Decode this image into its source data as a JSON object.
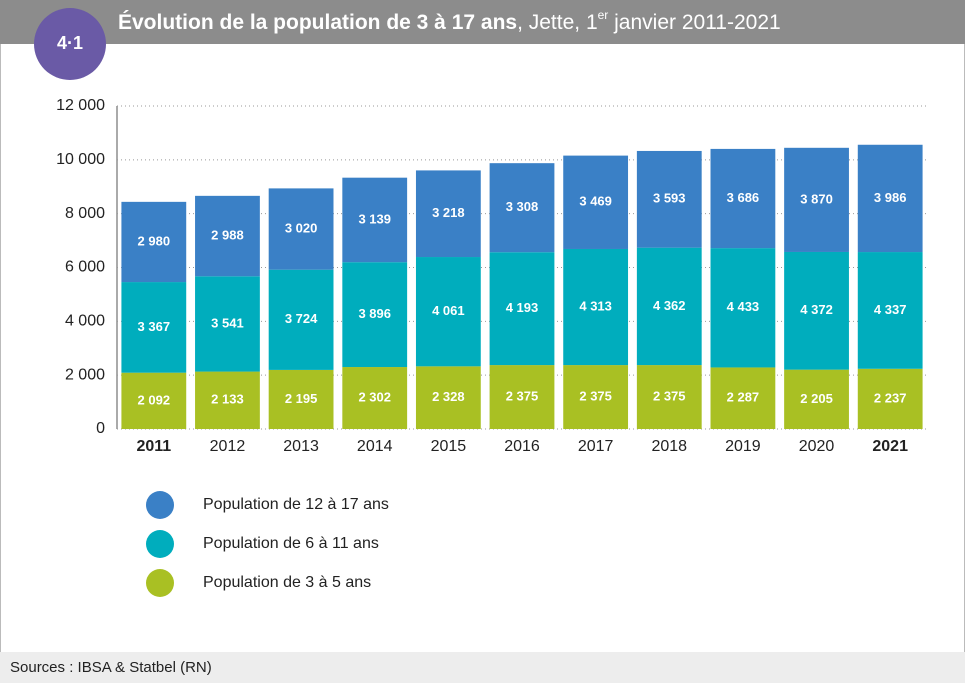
{
  "badge": "4·1",
  "chart_data": {
    "type": "stacked_bar",
    "title": {
      "bold": "Évolution de la population de 3 à 17 ans",
      "rest": ", Jette, 1",
      "sup": "er",
      "end": " janvier 2011-2021"
    },
    "categories": [
      "2011",
      "2012",
      "2013",
      "2014",
      "2015",
      "2016",
      "2017",
      "2018",
      "2019",
      "2020",
      "2021"
    ],
    "bold_categories": [
      0,
      10
    ],
    "series": [
      {
        "name": "Population de 3 à 5 ans",
        "color": "#a9c023",
        "values": [
          2092,
          2133,
          2195,
          2302,
          2328,
          2375,
          2375,
          2375,
          2287,
          2205,
          2237
        ],
        "value_labels": [
          "2 092",
          "2 133",
          "2 195",
          "2 302",
          "2 328",
          "2 375",
          "2 375",
          "2 375",
          "2 287",
          "2 205",
          "2 237"
        ]
      },
      {
        "name": "Population de 6 à 11 ans",
        "color": "#00adbd",
        "values": [
          3367,
          3541,
          3724,
          3896,
          4061,
          4193,
          4313,
          4362,
          4433,
          4372,
          4337
        ],
        "value_labels": [
          "3 367",
          "3 541",
          "3 724",
          "3 896",
          "4 061",
          "4 193",
          "4 313",
          "4 362",
          "4 433",
          "4 372",
          "4 337"
        ]
      },
      {
        "name": "Population de 12 à 17 ans",
        "color": "#3a80c6",
        "values": [
          2980,
          2988,
          3020,
          3139,
          3218,
          3308,
          3469,
          3593,
          3686,
          3870,
          3986
        ],
        "value_labels": [
          "2 980",
          "2 988",
          "3 020",
          "3 139",
          "3 218",
          "3 308",
          "3 469",
          "3 593",
          "3 686",
          "3 870",
          "3 986"
        ]
      }
    ],
    "ylim": [
      0,
      12000
    ],
    "yticks": [
      0,
      {
        "value": 2000,
        "label": "2 000"
      },
      {
        "value": 4000,
        "label": "4 000"
      },
      {
        "value": 6000,
        "label": "6 000"
      },
      {
        "value": 8000,
        "label": "8 000"
      },
      {
        "value": 10000,
        "label": "10 000"
      },
      {
        "value": 12000,
        "label": "12 000"
      }
    ],
    "grid": true
  },
  "source": "Sources : IBSA & Statbel (RN)"
}
